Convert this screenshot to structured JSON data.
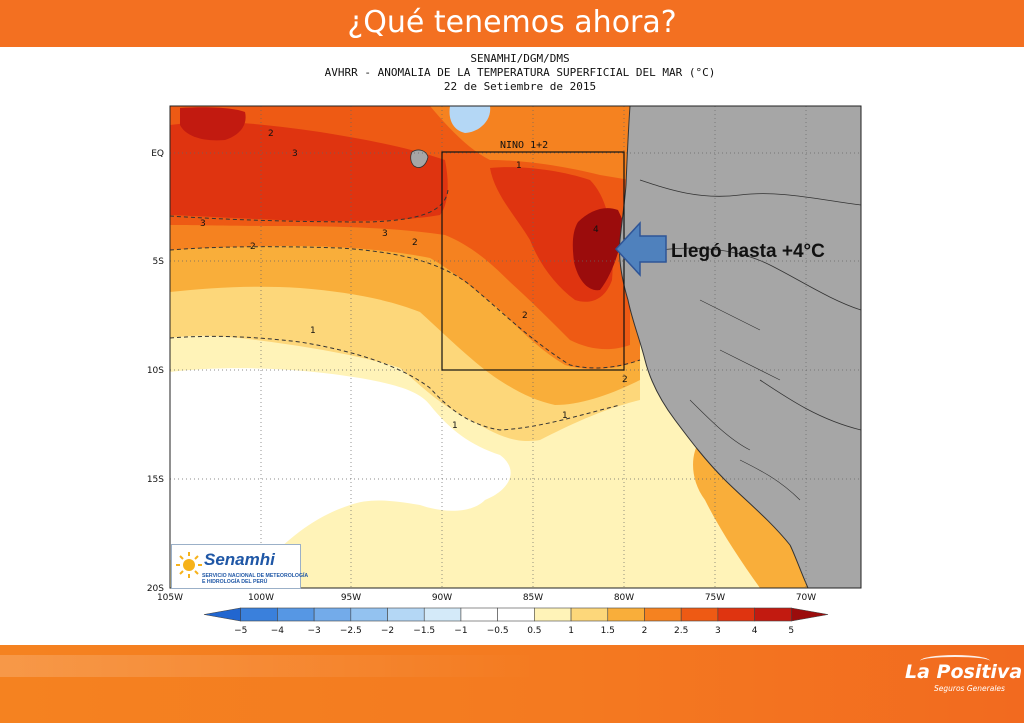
{
  "slide": {
    "title": "¿Qué tenemos ahora?"
  },
  "map": {
    "header_line1": "SENAMHI/DGM/DMS",
    "header_line2": "AVHRR - ANOMALIA DE LA TEMPERATURA SUPERFICIAL DEL MAR (°C)",
    "header_line3": "22 de Setiembre de 2015",
    "region_label": "NINO 1+2",
    "lat_labels": [
      "EQ",
      "5S",
      "10S",
      "15S",
      "20S"
    ],
    "lon_labels": [
      "105W",
      "100W",
      "95W",
      "90W",
      "85W",
      "80W",
      "75W",
      "70W"
    ],
    "contour_labels": [
      "1",
      "2",
      "3",
      "4"
    ],
    "colorbar_labels": [
      "−5",
      "−4",
      "−3",
      "−2.5",
      "−2",
      "−1.5",
      "−1",
      "−0.5",
      "0.5",
      "1",
      "1.5",
      "2",
      "2.5",
      "3",
      "4",
      "5"
    ],
    "colorbar_colors": [
      "#2166d0",
      "#3a80dc",
      "#5697e4",
      "#73abea",
      "#93c2f0",
      "#b4d7f5",
      "#d4eaf9",
      "#ffffff",
      "#ffffff",
      "#fff3b8",
      "#fdd77a",
      "#f9ae3a",
      "#f58220",
      "#ee5a14",
      "#df3410",
      "#c21a10",
      "#9b0c0c"
    ],
    "land_color": "#a6a6a6"
  },
  "annotation": {
    "text": "Llegó hasta +4°C",
    "arrow_color": "#4f81bd"
  },
  "logo": {
    "name": "Senamhi",
    "sub1": "SERVICIO NACIONAL DE METEOROLOGÍA",
    "sub2": "E HIDROLOGÍA DEL PERÚ"
  },
  "brand": {
    "name": "La Positiva",
    "tagline": "Seguros Generales"
  }
}
